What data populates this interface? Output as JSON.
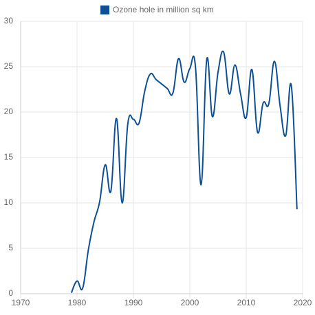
{
  "chart_data": {
    "type": "line",
    "x": [
      1979,
      1980,
      1981,
      1982,
      1983,
      1984,
      1985,
      1986,
      1987,
      1988,
      1989,
      1990,
      1991,
      1992,
      1993,
      1994,
      1995,
      1996,
      1997,
      1998,
      1999,
      2000,
      2001,
      2002,
      2003,
      2004,
      2005,
      2006,
      2007,
      2008,
      2009,
      2010,
      2011,
      2012,
      2013,
      2014,
      2015,
      2016,
      2017,
      2018,
      2019
    ],
    "series": [
      {
        "name": "Ozone hole in million sq km",
        "color": "#0d4f94",
        "values": [
          0.1,
          1.4,
          0.6,
          4.8,
          7.9,
          10.1,
          14.2,
          11.3,
          19.3,
          10.0,
          18.7,
          19.2,
          18.8,
          22.3,
          24.2,
          23.6,
          23.1,
          22.6,
          22.1,
          25.9,
          23.3,
          24.8,
          25.0,
          12.0,
          25.8,
          19.5,
          24.4,
          26.6,
          22.0,
          25.2,
          22.0,
          19.4,
          24.7,
          17.8,
          21.0,
          20.9,
          25.6,
          20.7,
          17.4,
          22.9,
          9.3
        ]
      }
    ],
    "xlim": [
      1970,
      2020
    ],
    "xticks": [
      1970,
      1980,
      1990,
      2000,
      2010,
      2020
    ],
    "ylim": [
      0,
      30
    ],
    "yticks": [
      0,
      5,
      10,
      15,
      20,
      25,
      30
    ],
    "grid": true
  }
}
